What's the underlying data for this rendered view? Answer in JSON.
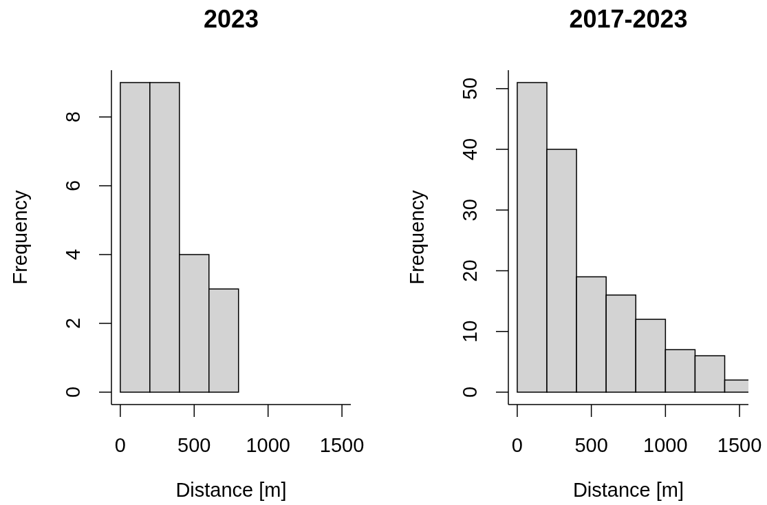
{
  "chart_data": [
    {
      "type": "histogram",
      "title": "2023",
      "xlabel": "Distance [m]",
      "ylabel": "Frequency",
      "bins": [
        0,
        200,
        400,
        600,
        800
      ],
      "values": [
        9,
        9,
        4,
        3
      ],
      "color": "#d3d3d3",
      "xlim": [
        -60,
        1560
      ],
      "xticks": [
        0,
        500,
        1000,
        1500
      ],
      "ylim": [
        -0.36,
        9.36
      ],
      "yticks": [
        0,
        2,
        4,
        6,
        8
      ]
    },
    {
      "type": "histogram",
      "title": "2017-2023",
      "xlabel": "Distance [m]",
      "ylabel": "Frequency",
      "bins": [
        0,
        200,
        400,
        600,
        800,
        1000,
        1200,
        1400,
        1600
      ],
      "values": [
        51,
        40,
        19,
        16,
        12,
        7,
        6,
        2
      ],
      "color": "#d3d3d3",
      "xlim": [
        -60,
        1560
      ],
      "xticks": [
        0,
        500,
        1000,
        1500
      ],
      "ylim": [
        -2.04,
        53.04
      ],
      "yticks": [
        0,
        10,
        20,
        30,
        40,
        50
      ]
    }
  ]
}
